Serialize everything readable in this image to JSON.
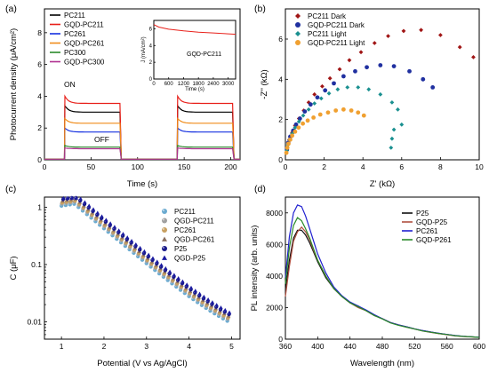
{
  "chart_data": [
    {
      "type": "line",
      "panel_label": "(a)",
      "xlabel": "Time (s)",
      "ylabel": "Photocurrent density (μA/cm²)",
      "xlim": [
        0,
        210
      ],
      "ylim": [
        0,
        9.5
      ],
      "xticks": [
        "0",
        "50",
        "100",
        "150",
        "200"
      ],
      "yticks": [
        "0",
        "2",
        "4",
        "6",
        "8"
      ],
      "annotations": [
        "ON",
        "OFF"
      ],
      "light_periods": [
        [
          22,
          82
        ],
        [
          143,
          203
        ]
      ],
      "series": [
        {
          "name": "PC211",
          "color": "#000000",
          "on_peak": 3.4,
          "on_level": 3.0,
          "off_level": 0.05
        },
        {
          "name": "GQD-PC211",
          "color": "#e8201a",
          "on_peak": 4.0,
          "on_level": 3.55,
          "off_level": 0.05
        },
        {
          "name": "PC261",
          "color": "#1530e0",
          "on_peak": 2.0,
          "on_level": 1.75,
          "off_level": 0.05
        },
        {
          "name": "GQD-PC261",
          "color": "#f08c1a",
          "on_peak": 2.6,
          "on_level": 2.3,
          "off_level": 0.05
        },
        {
          "name": "PC300",
          "color": "#2a8a2a",
          "on_peak": 0.9,
          "on_level": 0.8,
          "off_level": 0.04
        },
        {
          "name": "GQD-PC300",
          "color": "#b03090",
          "on_peak": 0.75,
          "on_level": 0.7,
          "off_level": 0.04
        }
      ],
      "inset": {
        "label": "GQD-PC211",
        "xlabel": "Time (s)",
        "ylabel": "J (mA/cm²)",
        "xlim": [
          0,
          3300
        ],
        "ylim": [
          0,
          7
        ],
        "xticks": [
          "0",
          "600",
          "1200",
          "1800",
          "2400",
          "3000"
        ],
        "yticks": [
          "0",
          "2",
          "4",
          "6"
        ],
        "x": [
          0,
          200,
          600,
          1200,
          1800,
          2400,
          3000,
          3300
        ],
        "y": [
          6.5,
          6.2,
          5.95,
          5.75,
          5.6,
          5.5,
          5.4,
          5.35
        ],
        "color": "#e8201a"
      }
    },
    {
      "type": "scatter",
      "panel_label": "(b)",
      "xlabel": "Z' (kΩ)",
      "ylabel": "-Z'' (kΩ)",
      "xlim": [
        0,
        10
      ],
      "ylim": [
        0,
        7.5
      ],
      "xticks": [
        "0",
        "2",
        "4",
        "6",
        "8",
        "10"
      ],
      "yticks": [
        "0",
        "2",
        "4",
        "6"
      ],
      "series": [
        {
          "name": "PC211 Dark",
          "color": "#a01515",
          "marker": "diamond",
          "x": [
            0.1,
            0.2,
            0.35,
            0.5,
            0.7,
            0.95,
            1.2,
            1.5,
            1.9,
            2.3,
            2.8,
            3.3,
            3.9,
            4.6,
            5.3,
            6.1,
            7.0,
            8.0,
            9.0,
            9.7
          ],
          "y": [
            0.6,
            1.0,
            1.35,
            1.7,
            2.05,
            2.45,
            2.85,
            3.25,
            3.65,
            4.05,
            4.5,
            4.95,
            5.35,
            5.8,
            6.15,
            6.4,
            6.45,
            6.2,
            5.6,
            5.1
          ]
        },
        {
          "name": "GQD-PC211 Dark",
          "color": "#2030a0",
          "marker": "circle",
          "x": [
            0.08,
            0.15,
            0.25,
            0.4,
            0.55,
            0.75,
            1.0,
            1.3,
            1.65,
            2.05,
            2.5,
            3.0,
            3.6,
            4.2,
            4.9,
            5.6,
            6.4,
            7.1,
            7.6
          ],
          "y": [
            0.5,
            0.85,
            1.15,
            1.45,
            1.75,
            2.05,
            2.4,
            2.75,
            3.1,
            3.45,
            3.8,
            4.15,
            4.4,
            4.6,
            4.7,
            4.65,
            4.4,
            4.0,
            3.6
          ]
        },
        {
          "name": "PC211 Light",
          "color": "#1a9090",
          "marker": "diamond",
          "x": [
            0.07,
            0.14,
            0.22,
            0.35,
            0.5,
            0.7,
            0.92,
            1.2,
            1.5,
            1.85,
            2.25,
            2.7,
            3.2,
            3.75,
            4.3,
            4.9,
            5.5,
            5.8,
            6.0,
            5.6,
            5.5,
            5.45
          ],
          "y": [
            0.45,
            0.75,
            1.0,
            1.3,
            1.6,
            1.9,
            2.2,
            2.5,
            2.8,
            3.05,
            3.3,
            3.5,
            3.6,
            3.6,
            3.5,
            3.25,
            2.85,
            2.5,
            1.75,
            1.5,
            1.05,
            0.6
          ]
        },
        {
          "name": "GQD-PC211 Light",
          "color": "#f0a030",
          "marker": "circle",
          "x": [
            0.05,
            0.1,
            0.16,
            0.25,
            0.35,
            0.5,
            0.68,
            0.9,
            1.15,
            1.45,
            1.8,
            2.2,
            2.6,
            3.0,
            3.4,
            3.75,
            4.05
          ],
          "y": [
            0.35,
            0.6,
            0.8,
            1.0,
            1.2,
            1.4,
            1.6,
            1.8,
            1.95,
            2.1,
            2.25,
            2.35,
            2.45,
            2.5,
            2.45,
            2.35,
            2.2
          ]
        }
      ]
    },
    {
      "type": "scatter",
      "panel_label": "(c)",
      "xlabel": "Potential (V vs Ag/AgCl)",
      "ylabel": "C (μF)",
      "xscale": "linear",
      "yscale": "log",
      "xlim": [
        0.6,
        5.2
      ],
      "ylim": [
        0.005,
        1.5
      ],
      "xticks": [
        "1",
        "2",
        "3",
        "4",
        "5"
      ],
      "yticks": [
        "0.01",
        "0.1",
        "1"
      ],
      "x": [
        1.0,
        1.1,
        1.2,
        1.3,
        1.4,
        1.5,
        1.6,
        1.7,
        1.8,
        1.9,
        2.0,
        2.1,
        2.2,
        2.3,
        2.4,
        2.5,
        2.6,
        2.7,
        2.8,
        2.9,
        3.0,
        3.1,
        3.2,
        3.3,
        3.4,
        3.5,
        3.6,
        3.7,
        3.8,
        3.9,
        4.0,
        4.1,
        4.2,
        4.3,
        4.4,
        4.5,
        4.6,
        4.7,
        4.8,
        4.9
      ],
      "series": [
        {
          "name": "PC211",
          "color": "#6aaad0",
          "marker": "sphere",
          "scale": 0.92
        },
        {
          "name": "QGD-PC211",
          "color": "#a0a0a0",
          "marker": "sphere",
          "scale": 1.0
        },
        {
          "name": "PC261",
          "color": "#c8a060",
          "marker": "sphere",
          "scale": 1.05
        },
        {
          "name": "QGD-PC261",
          "color": "#8a7060",
          "marker": "triangle",
          "scale": 1.12
        },
        {
          "name": "P25",
          "color": "#1a1a8a",
          "marker": "sphere",
          "scale": 1.2
        },
        {
          "name": "QGD-P25",
          "color": "#1a1aa0",
          "marker": "triangle",
          "scale": 1.3
        }
      ]
    },
    {
      "type": "line",
      "panel_label": "(d)",
      "xlabel": "Wavelength (nm)",
      "ylabel": "PL intensity (arb. units)",
      "xlim": [
        360,
        600
      ],
      "ylim": [
        0,
        9000
      ],
      "xticks": [
        "360",
        "400",
        "440",
        "480",
        "520",
        "560",
        "600"
      ],
      "yticks": [
        "0",
        "2000",
        "4000",
        "6000",
        "8000"
      ],
      "x": [
        360,
        365,
        370,
        375,
        380,
        385,
        390,
        395,
        400,
        410,
        420,
        430,
        440,
        450,
        460,
        470,
        480,
        490,
        500,
        510,
        520,
        530,
        540,
        550,
        560,
        570,
        580,
        590,
        600
      ],
      "series": [
        {
          "name": "P25",
          "color": "#111111",
          "y": [
            3100,
            5000,
            6400,
            6900,
            6900,
            6600,
            6100,
            5500,
            4900,
            3900,
            3200,
            2700,
            2300,
            2100,
            1800,
            1500,
            1300,
            1050,
            900,
            780,
            650,
            540,
            450,
            360,
            300,
            220,
            180,
            150,
            120
          ]
        },
        {
          "name": "GQD-P25",
          "color": "#b05040",
          "y": [
            2700,
            4600,
            6200,
            6800,
            7100,
            6800,
            6300,
            5600,
            5000,
            4000,
            3200,
            2700,
            2300,
            2000,
            1800,
            1500,
            1300,
            1050,
            900,
            760,
            640,
            520,
            430,
            350,
            280,
            210,
            170,
            140,
            110
          ]
        },
        {
          "name": "PC261",
          "color": "#2020d0",
          "y": [
            3900,
            6500,
            8000,
            8500,
            8400,
            7800,
            7000,
            6200,
            5400,
            4200,
            3300,
            2750,
            2350,
            2100,
            1850,
            1550,
            1300,
            1050,
            900,
            780,
            650,
            540,
            450,
            370,
            300,
            230,
            185,
            150,
            125
          ]
        },
        {
          "name": "GQD-P261",
          "color": "#2a8a2a",
          "y": [
            3500,
            5800,
            7200,
            7700,
            7500,
            7000,
            6400,
            5700,
            5000,
            4000,
            3200,
            2700,
            2300,
            2050,
            1800,
            1500,
            1280,
            1030,
            880,
            760,
            640,
            520,
            440,
            360,
            290,
            220,
            175,
            145,
            115
          ]
        }
      ]
    }
  ]
}
